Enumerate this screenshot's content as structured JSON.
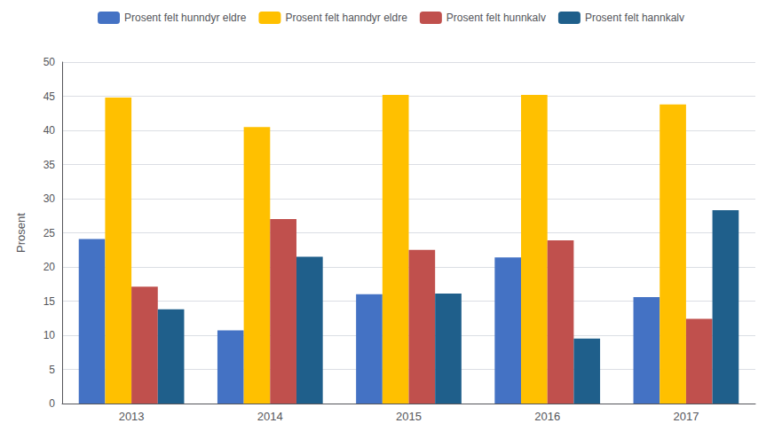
{
  "chart_data": {
    "type": "bar",
    "categories": [
      "2013",
      "2014",
      "2015",
      "2016",
      "2017"
    ],
    "series": [
      {
        "name": "Prosent felt hunndyr eldre",
        "color": "#4472C4",
        "values": [
          24.1,
          10.7,
          16.0,
          21.4,
          15.6
        ]
      },
      {
        "name": "Prosent felt hanndyr eldre",
        "color": "#FFC000",
        "values": [
          44.8,
          40.5,
          45.2,
          45.2,
          43.8
        ]
      },
      {
        "name": "Prosent felt hunnkalv",
        "color": "#C0504D",
        "values": [
          17.1,
          27.0,
          22.5,
          23.9,
          12.4
        ]
      },
      {
        "name": "Prosent felt hannkalv",
        "color": "#1F5F8B",
        "values": [
          13.8,
          21.5,
          16.1,
          9.5,
          28.3
        ]
      }
    ],
    "ylabel": "Prosent",
    "ylim": [
      0,
      50
    ],
    "yticks": [
      0,
      5,
      10,
      15,
      20,
      25,
      30,
      35,
      40,
      45,
      50
    ],
    "grid": true,
    "legend": "top"
  }
}
